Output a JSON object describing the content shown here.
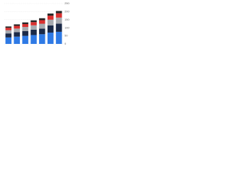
{
  "chart_data": {
    "type": "stacked-bar",
    "categories": [
      null,
      null,
      null,
      null,
      null,
      null,
      null
    ],
    "series": [
      {
        "color": "#2f7ae5",
        "values": [
          40,
          45,
          50,
          55,
          60,
          70,
          75
        ]
      },
      {
        "color": "#1b2a48",
        "values": [
          25,
          28,
          30,
          33,
          35,
          45,
          50
        ]
      },
      {
        "color": "#a7aaaf",
        "values": [
          20,
          22,
          25,
          27,
          30,
          35,
          38
        ]
      },
      {
        "color": "#d9302f",
        "values": [
          15,
          17,
          18,
          20,
          22,
          25,
          27
        ]
      },
      {
        "color": "#232323",
        "values": [
          8,
          9,
          10,
          11,
          12,
          13,
          14
        ]
      }
    ],
    "ylim": [
      0,
      250
    ],
    "yticks": [
      0,
      50,
      100,
      150,
      200,
      250
    ],
    "grid": true
  }
}
